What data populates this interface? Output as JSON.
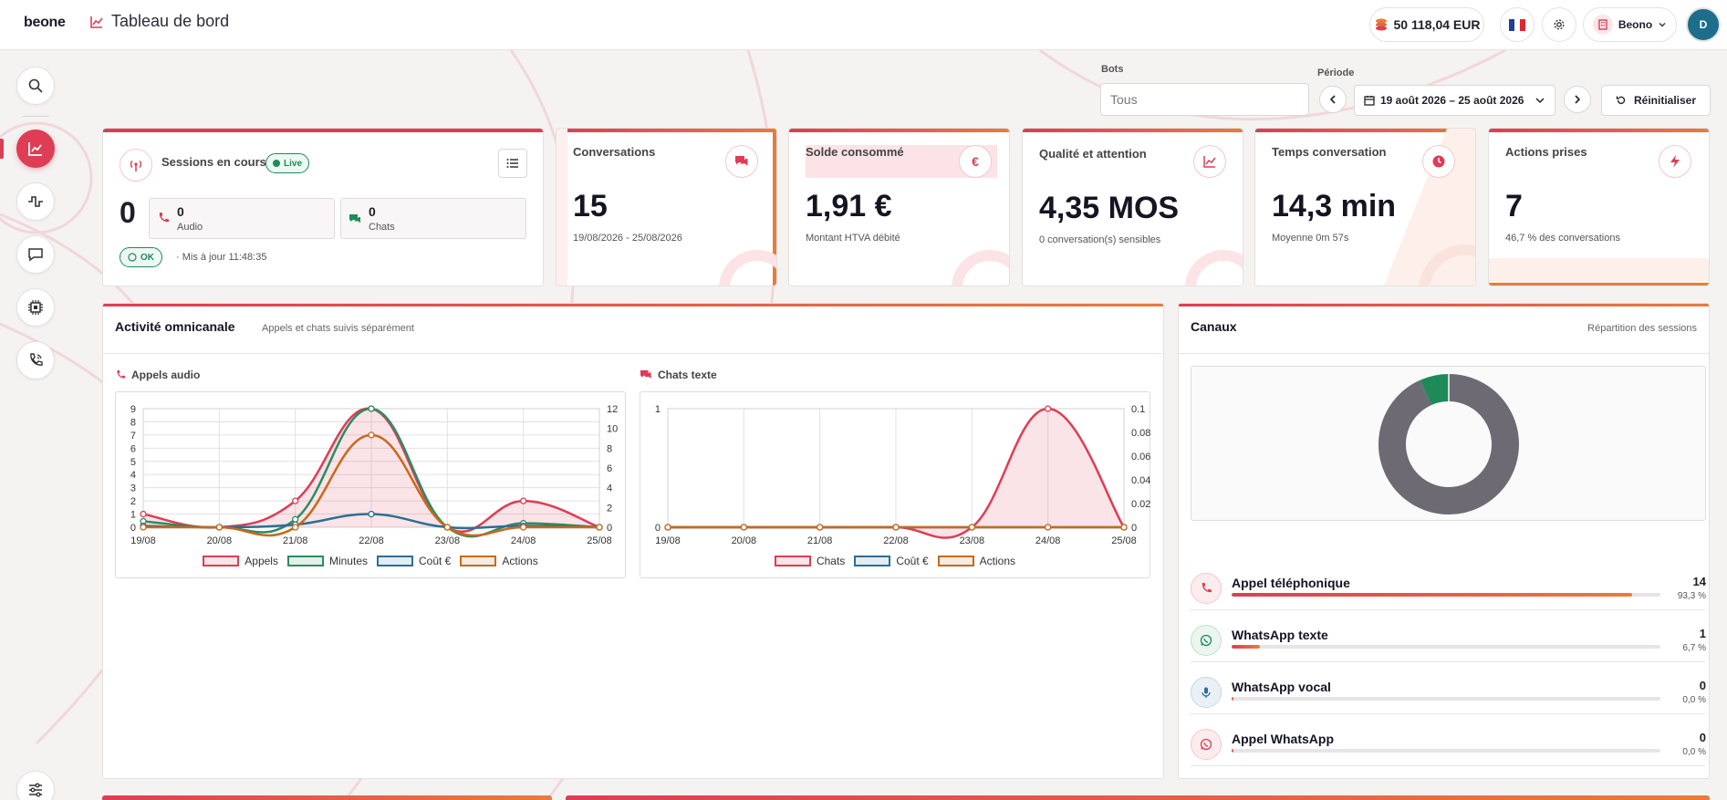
{
  "header": {
    "logo": "beone",
    "title": "Tableau de bord",
    "balance": "50 118,04 EUR",
    "org": "Beono",
    "avatar_initial": "D"
  },
  "sidebar": {
    "items": [
      {
        "icon": "search-icon"
      },
      {
        "icon": "trend-chart-icon",
        "active": true
      },
      {
        "icon": "activity-icon"
      },
      {
        "icon": "chat-bubble-icon"
      },
      {
        "icon": "chip-icon"
      },
      {
        "icon": "phone-call-icon"
      },
      {
        "icon": "sliders-icon"
      }
    ]
  },
  "filters": {
    "bots_label": "Bots",
    "bots_value": "Tous",
    "period_label": "Période",
    "period_value": "19 août 2026 – 25 août 2026",
    "reset_label": "Réinitialiser"
  },
  "sessions": {
    "title": "Sessions en cours",
    "live": "Live",
    "total": "0",
    "audio_count": "0",
    "audio_label": "Audio",
    "chats_count": "0",
    "chats_label": "Chats",
    "ok": "OK",
    "updated": "· Mis à jour 11:48:35"
  },
  "kpis": [
    {
      "title": "Conversations",
      "value": "15",
      "sub": "19/08/2026 - 25/08/2026",
      "icon": "chat-icon"
    },
    {
      "title": "Solde consommé",
      "value": "1,91 €",
      "sub": "Montant HTVA débité",
      "icon": "euro-icon"
    },
    {
      "title": "Qualité et attention",
      "value": "4,35 MOS",
      "sub": "0 conversation(s) sensibles",
      "icon": "trend-chart-icon"
    },
    {
      "title": "Temps conversation",
      "value": "14,3 min",
      "sub": "Moyenne 0m 57s",
      "icon": "clock-icon"
    },
    {
      "title": "Actions prises",
      "value": "7",
      "sub": "46,7 % des conversations",
      "icon": "bolt-icon"
    }
  ],
  "activity": {
    "title": "Activité omnicanale",
    "subtitle": "Appels et chats suivis séparément",
    "audio_title": "Appels audio",
    "chat_title": "Chats texte"
  },
  "chart_data": [
    {
      "type": "line",
      "title": "Appels audio",
      "x": [
        "19/08",
        "20/08",
        "21/08",
        "22/08",
        "23/08",
        "24/08",
        "25/08"
      ],
      "ylim": [
        0,
        9
      ],
      "y2lim": [
        0,
        12
      ],
      "yticks": [
        0,
        1,
        2,
        3,
        4,
        5,
        6,
        7,
        8,
        9
      ],
      "y2ticks": [
        0,
        2,
        4,
        6,
        8,
        10,
        12
      ],
      "grid": true,
      "legend": "bottom",
      "series": [
        {
          "name": "Appels",
          "axis": "left",
          "color": "#de3d55",
          "fill": true,
          "values": [
            1,
            0,
            2,
            9,
            0,
            2,
            0
          ]
        },
        {
          "name": "Minutes",
          "axis": "right",
          "color": "#2e8b62",
          "values": [
            0.6,
            0,
            0.8,
            12,
            0,
            0.4,
            0
          ]
        },
        {
          "name": "Coût €",
          "axis": "left",
          "color": "#2b6f95",
          "values": [
            0.1,
            0,
            0.2,
            1,
            0,
            0.1,
            0
          ]
        },
        {
          "name": "Actions",
          "axis": "left",
          "color": "#c8691b",
          "values": [
            0,
            0,
            0,
            7,
            0,
            0,
            0
          ]
        }
      ]
    },
    {
      "type": "line",
      "title": "Chats texte",
      "x": [
        "19/08",
        "20/08",
        "21/08",
        "22/08",
        "23/08",
        "24/08",
        "25/08"
      ],
      "ylim": [
        0,
        1
      ],
      "y2lim": [
        0,
        0.1
      ],
      "yticks": [
        0,
        1
      ],
      "y2ticks": [
        0,
        0.02,
        0.04,
        0.06,
        0.08,
        0.1
      ],
      "grid": true,
      "legend": "bottom",
      "series": [
        {
          "name": "Chats",
          "axis": "left",
          "color": "#de3d55",
          "fill": true,
          "values": [
            0,
            0,
            0,
            0,
            0,
            1,
            0
          ]
        },
        {
          "name": "Coût €",
          "axis": "right",
          "color": "#2b6f95",
          "values": [
            0,
            0,
            0,
            0,
            0,
            0,
            0
          ]
        },
        {
          "name": "Actions",
          "axis": "left",
          "color": "#c8691b",
          "values": [
            0,
            0,
            0,
            0,
            0,
            0,
            0
          ]
        }
      ]
    },
    {
      "type": "pie",
      "title": "Canaux",
      "categories": [
        "Appel téléphonique",
        "WhatsApp texte",
        "WhatsApp vocal",
        "Appel WhatsApp"
      ],
      "values": [
        14,
        1,
        0,
        0
      ],
      "colors": [
        "#6e6a73",
        "#1e8a5a",
        "#2b6f95",
        "#de3d55"
      ]
    }
  ],
  "channels": {
    "title": "Canaux",
    "subtitle": "Répartition des sessions",
    "items": [
      {
        "name": "Appel téléphonique",
        "count": "14",
        "pct": "93,3 %",
        "fraction": 0.933,
        "icon": "phone-icon"
      },
      {
        "name": "WhatsApp texte",
        "count": "1",
        "pct": "6,7 %",
        "fraction": 0.067,
        "icon": "whatsapp-icon"
      },
      {
        "name": "WhatsApp vocal",
        "count": "0",
        "pct": "0,0 %",
        "fraction": 0,
        "icon": "microphone-icon"
      },
      {
        "name": "Appel WhatsApp",
        "count": "0",
        "pct": "0,0 %",
        "fraction": 0,
        "icon": "whatsapp-icon"
      }
    ]
  }
}
